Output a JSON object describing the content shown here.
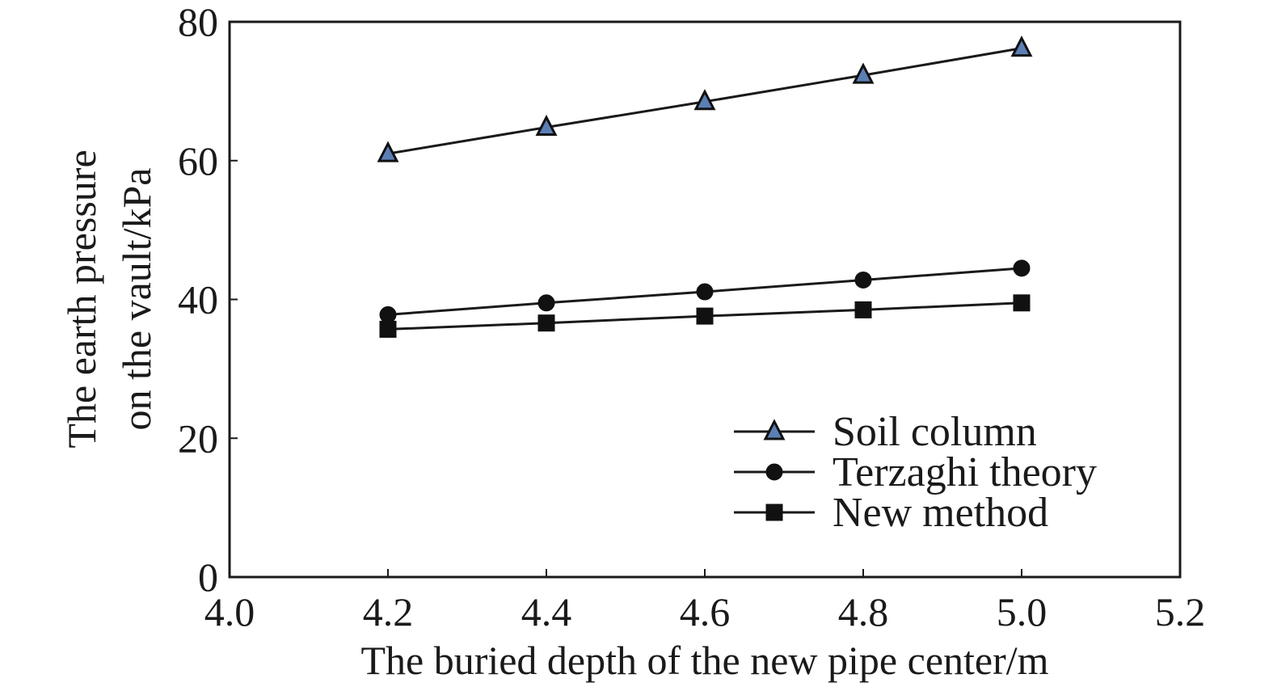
{
  "chart_data": {
    "type": "line",
    "title": "",
    "xlabel": "The buried depth of the new pipe center/m",
    "ylabel_lines": [
      "The earth pressure",
      "on the vault/kPa"
    ],
    "xlim": [
      4.0,
      5.2
    ],
    "ylim": [
      0,
      80
    ],
    "xticks": [
      "4.0",
      "4.2",
      "4.4",
      "4.6",
      "4.8",
      "5.0",
      "5.2"
    ],
    "yticks": [
      "0",
      "20",
      "40",
      "60",
      "80"
    ],
    "grid": false,
    "legend_position": "bottom-right",
    "x": [
      4.2,
      4.4,
      4.6,
      4.8,
      5.0
    ],
    "series": [
      {
        "name": "Soil column",
        "marker": "triangle",
        "marker_color": "#5b7fb5",
        "line_color": "#1a1a1a",
        "values": [
          61.0,
          64.8,
          68.5,
          72.3,
          76.2
        ]
      },
      {
        "name": "Terzaghi theory",
        "marker": "circle",
        "marker_color": "#111111",
        "line_color": "#1a1a1a",
        "values": [
          37.8,
          39.5,
          41.1,
          42.8,
          44.5
        ]
      },
      {
        "name": "New method",
        "marker": "square",
        "marker_color": "#111111",
        "line_color": "#1a1a1a",
        "values": [
          35.7,
          36.6,
          37.6,
          38.5,
          39.5
        ]
      }
    ]
  }
}
